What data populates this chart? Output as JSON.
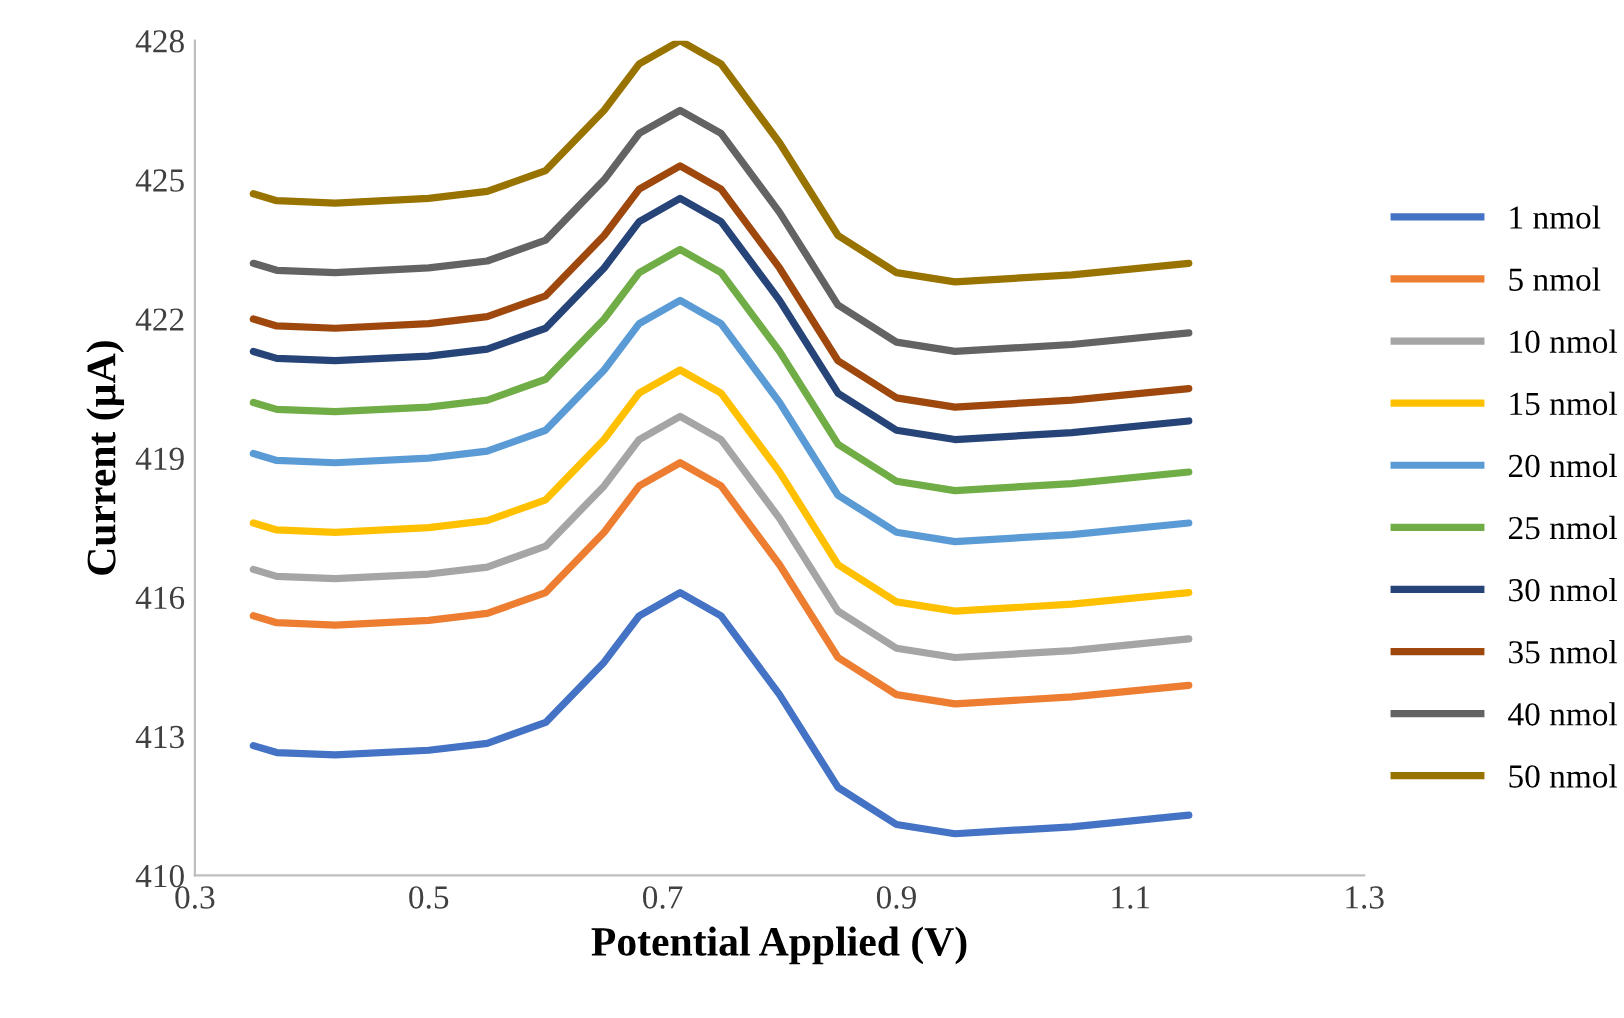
{
  "chart_data": {
    "type": "line",
    "xlabel": "Potential Applied (V)",
    "ylabel": "Current (µA)",
    "x": [
      0.35,
      0.37,
      0.42,
      0.5,
      0.55,
      0.6,
      0.65,
      0.68,
      0.715,
      0.75,
      0.8,
      0.85,
      0.9,
      0.95,
      1.05,
      1.15
    ],
    "xlim": [
      0.3,
      1.3
    ],
    "xticks": [
      0.3,
      0.5,
      0.7,
      0.9,
      1.1,
      1.3
    ],
    "ylim": [
      410,
      428
    ],
    "yticks": [
      410,
      413,
      416,
      419,
      422,
      425,
      428
    ],
    "grid": false,
    "legend": "right",
    "marker": "none",
    "line_style": "solid",
    "series": [
      {
        "name": "1 nmol",
        "color": "#4472c4",
        "values": [
          412.8,
          412.65,
          412.6,
          412.7,
          412.85,
          413.3,
          414.6,
          415.6,
          416.1,
          415.6,
          413.9,
          411.9,
          411.1,
          410.9,
          411.05,
          411.3
        ]
      },
      {
        "name": "5 nmol",
        "color": "#ed7d31",
        "values": [
          415.6,
          415.45,
          415.4,
          415.5,
          415.65,
          416.1,
          417.4,
          418.4,
          418.9,
          418.4,
          416.7,
          414.7,
          413.9,
          413.7,
          413.85,
          414.1
        ]
      },
      {
        "name": "10 nmol",
        "color": "#a5a5a5",
        "values": [
          416.6,
          416.45,
          416.4,
          416.5,
          416.65,
          417.1,
          418.4,
          419.4,
          419.9,
          419.4,
          417.7,
          415.7,
          414.9,
          414.7,
          414.85,
          415.1
        ]
      },
      {
        "name": "15 nmol",
        "color": "#ffc000",
        "values": [
          417.6,
          417.45,
          417.4,
          417.5,
          417.65,
          418.1,
          419.4,
          420.4,
          420.9,
          420.4,
          418.7,
          416.7,
          415.9,
          415.7,
          415.85,
          416.1
        ]
      },
      {
        "name": "20 nmol",
        "color": "#5b9bd5",
        "values": [
          419.1,
          418.95,
          418.9,
          419.0,
          419.15,
          419.6,
          420.9,
          421.9,
          422.4,
          421.9,
          420.2,
          418.2,
          417.4,
          417.2,
          417.35,
          417.6
        ]
      },
      {
        "name": "25 nmol",
        "color": "#70ad47",
        "values": [
          420.2,
          420.05,
          420.0,
          420.1,
          420.25,
          420.7,
          422.0,
          423.0,
          423.5,
          423.0,
          421.3,
          419.3,
          418.5,
          418.3,
          418.45,
          418.7
        ]
      },
      {
        "name": "30 nmol",
        "color": "#264478",
        "values": [
          421.3,
          421.15,
          421.1,
          421.2,
          421.35,
          421.8,
          423.1,
          424.1,
          424.6,
          424.1,
          422.4,
          420.4,
          419.6,
          419.4,
          419.55,
          419.8
        ]
      },
      {
        "name": "35 nmol",
        "color": "#9e480e",
        "values": [
          422.0,
          421.85,
          421.8,
          421.9,
          422.05,
          422.5,
          423.8,
          424.8,
          425.3,
          424.8,
          423.1,
          421.1,
          420.3,
          420.1,
          420.25,
          420.5
        ]
      },
      {
        "name": "40 nmol",
        "color": "#636363",
        "values": [
          423.2,
          423.05,
          423.0,
          423.1,
          423.25,
          423.7,
          425.0,
          426.0,
          426.5,
          426.0,
          424.3,
          422.3,
          421.5,
          421.3,
          421.45,
          421.7
        ]
      },
      {
        "name": "50 nmol",
        "color": "#997300",
        "values": [
          424.7,
          424.55,
          424.5,
          424.6,
          424.75,
          425.2,
          426.5,
          427.5,
          428.0,
          427.5,
          425.8,
          423.8,
          423.0,
          422.8,
          422.95,
          423.2
        ]
      }
    ]
  }
}
